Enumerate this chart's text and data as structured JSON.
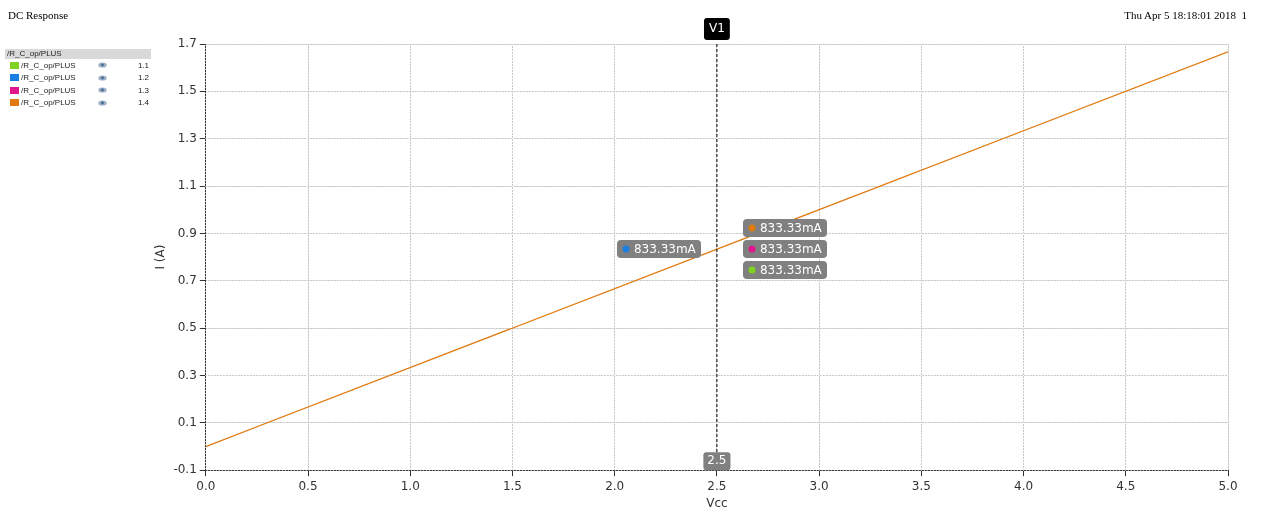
{
  "chart_data": {
    "type": "line",
    "title": "DC Response",
    "xlabel": "Vcc",
    "ylabel": "I (A)",
    "legend_title": "/R_C_op/PLUS",
    "legend": "top left",
    "grid": true,
    "marker": "none",
    "line_style": "solid",
    "xlim": [
      0,
      5
    ],
    "xticks": [
      {
        "value": 0,
        "label": "0.0"
      },
      {
        "value": 0.5,
        "label": "0.5"
      },
      {
        "value": 1,
        "label": "1.0"
      },
      {
        "value": 1.5,
        "label": "1.5"
      },
      {
        "value": 2,
        "label": "2.0"
      },
      {
        "value": 2.5,
        "label": "2.5"
      },
      {
        "value": 3,
        "label": "3.0"
      },
      {
        "value": 3.5,
        "label": "3.5"
      },
      {
        "value": 4,
        "label": "4.0"
      },
      {
        "value": 4.5,
        "label": "4.5"
      },
      {
        "value": 5,
        "label": "5.0"
      }
    ],
    "ylim": [
      -0.1,
      1.7
    ],
    "yticks": [
      -0.1,
      0.1,
      0.3,
      0.5,
      0.7,
      0.9,
      1.1,
      1.3,
      1.5,
      1.7
    ],
    "series": [
      {
        "name": "/R_C_op/PLUS",
        "color": "#7fd320",
        "values": [
          null,
          null
        ]
      },
      {
        "name": "/R_C_op/PLUS",
        "color": "#1a7fe0",
        "values": [
          null,
          null
        ]
      },
      {
        "name": "/R_C_op/PLUS",
        "color": "#e0168c",
        "values": [
          null,
          null
        ]
      },
      {
        "name": "/R_C_op/PLUS",
        "color": "#e07a10",
        "x": [
          0,
          5
        ],
        "values": [
          0,
          1.667
        ]
      }
    ],
    "ref_lines": [
      {
        "axis": "x",
        "value": 2.5,
        "label": "V1",
        "color": "#000000",
        "line_style": "dashed"
      }
    ],
    "annotations": [
      "833.33mA",
      "833.33mA",
      "833.33mA",
      "833.33mA",
      "Thu Apr 5 18:18:01 2018  1",
      "1.1",
      "1.2",
      "1.3",
      "1.4"
    ]
  }
}
